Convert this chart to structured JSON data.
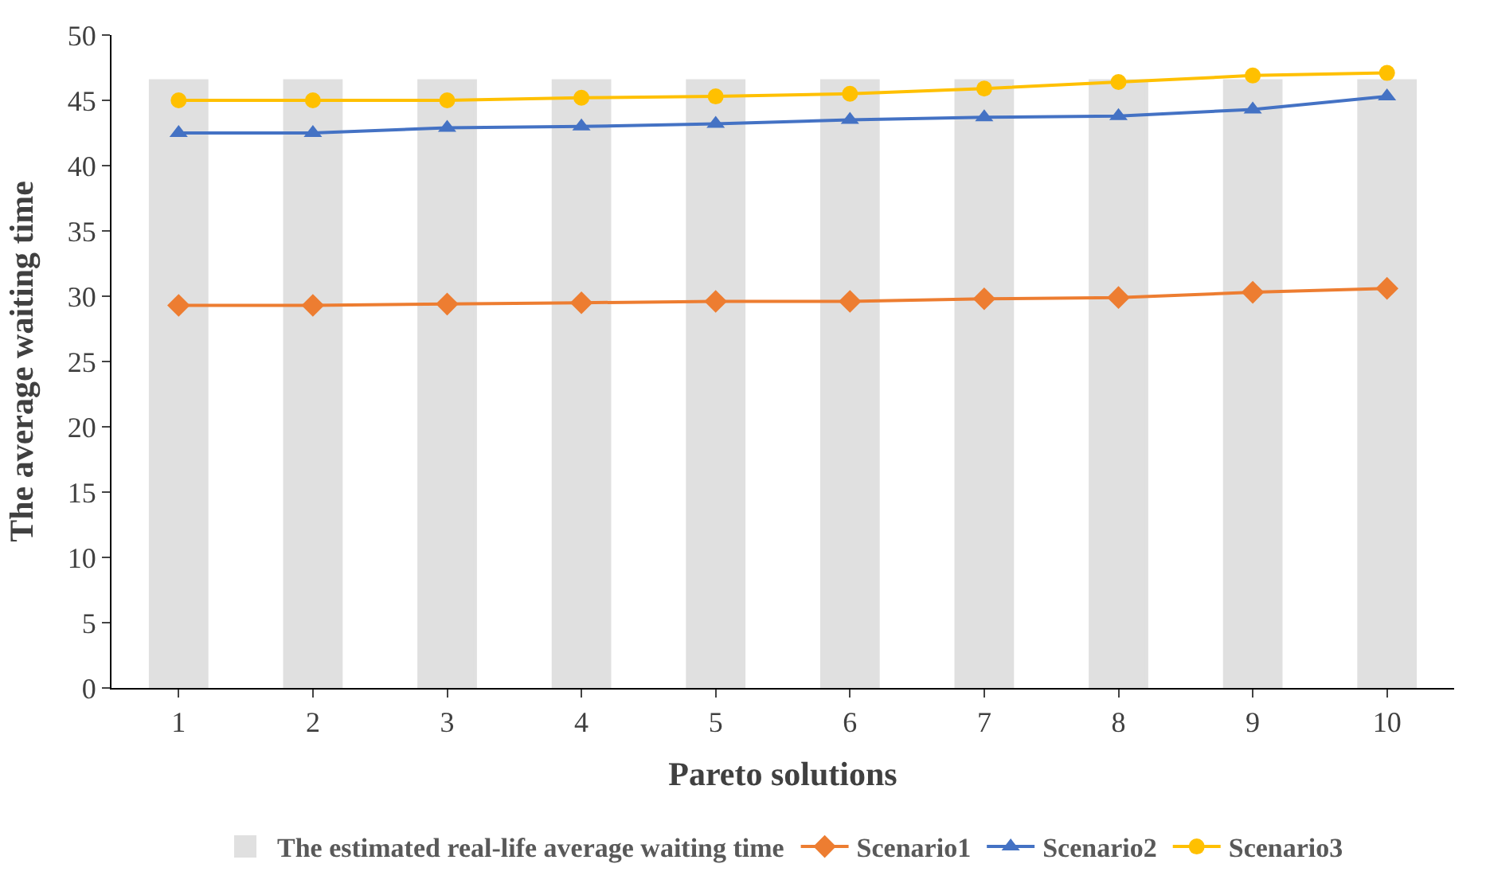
{
  "chart_data": {
    "type": "line",
    "xlabel": "Pareto solutions",
    "ylabel": "The average waiting time",
    "categories": [
      "1",
      "2",
      "3",
      "4",
      "5",
      "6",
      "7",
      "8",
      "9",
      "10"
    ],
    "series": [
      {
        "name": "The estimated real-life average waiting time",
        "type": "bar",
        "color": "#d9d9d9",
        "values": [
          46.5,
          46.5,
          46.5,
          46.5,
          46.5,
          46.5,
          46.5,
          46.5,
          46.5,
          46.5
        ]
      },
      {
        "name": "Scenario1",
        "color": "#ed7d31",
        "marker": "diamond",
        "values": [
          29.3,
          29.3,
          29.4,
          29.5,
          29.6,
          29.6,
          29.8,
          29.9,
          30.3,
          30.6
        ]
      },
      {
        "name": "Scenario2",
        "color": "#4472c4",
        "marker": "triangle",
        "values": [
          42.5,
          42.5,
          42.9,
          43.0,
          43.2,
          43.5,
          43.7,
          43.8,
          44.3,
          45.3
        ]
      },
      {
        "name": "Scenario3",
        "color": "#ffc000",
        "marker": "circle",
        "values": [
          45.0,
          45.0,
          45.0,
          45.2,
          45.3,
          45.5,
          45.9,
          46.4,
          46.9,
          47.1
        ]
      }
    ],
    "ylim": [
      0,
      50
    ],
    "yticks": [
      0,
      5,
      10,
      15,
      20,
      25,
      30,
      35,
      40,
      45,
      50
    ],
    "grid": false,
    "legend": "bottom"
  }
}
